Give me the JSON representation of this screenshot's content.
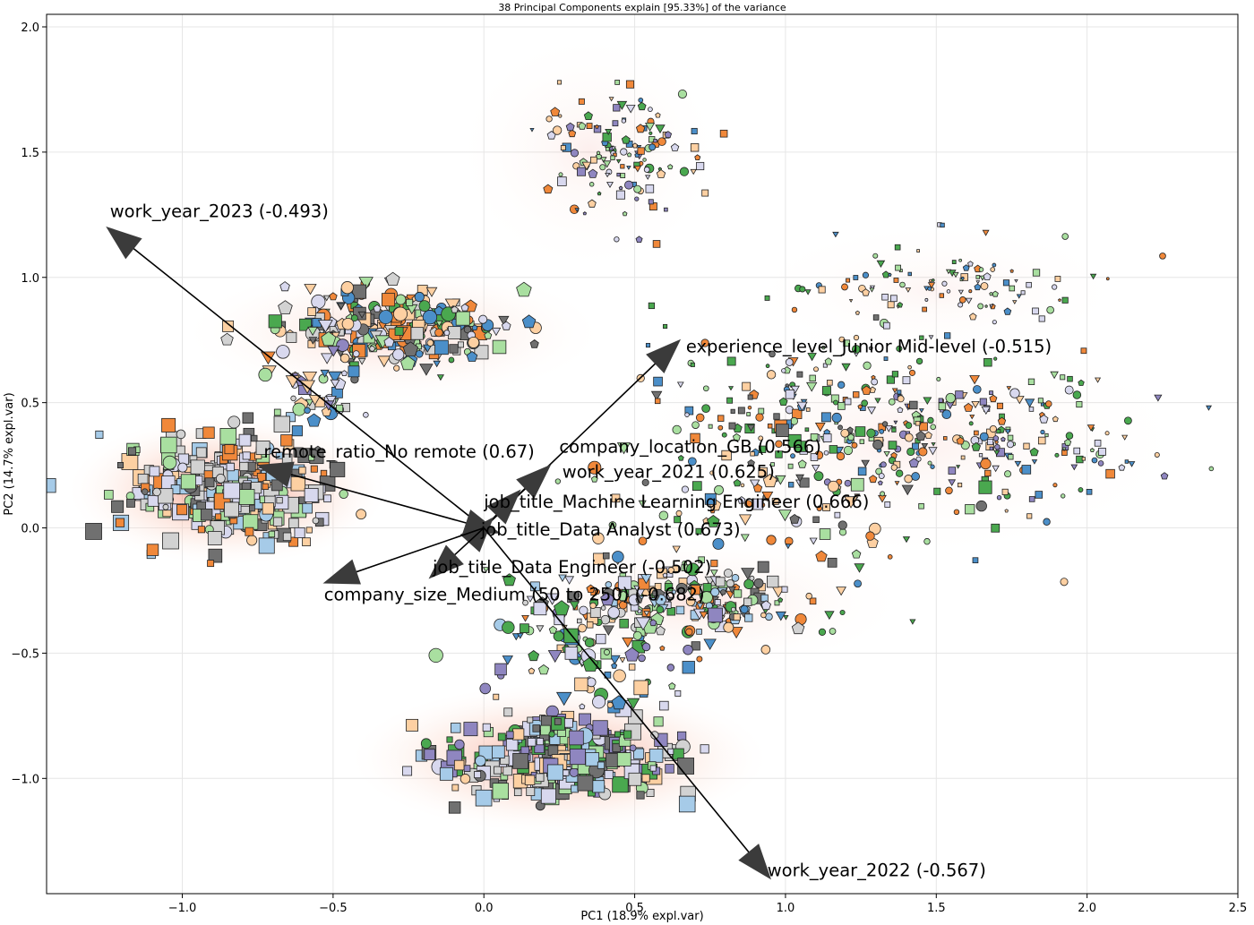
{
  "chart_data": {
    "type": "scatter",
    "title": "38 Principal Components explain [95.33%] of the variance",
    "xlabel": "PC1 (18.9% expl.var)",
    "ylabel": "PC2 (14.7% expl.var)",
    "xlim": [
      -1.45,
      2.5
    ],
    "ylim": [
      -1.46,
      2.05
    ],
    "xticks": [
      -1.0,
      -0.5,
      0.0,
      0.5,
      1.0,
      1.5,
      2.0,
      2.5
    ],
    "xtick_labels": [
      "−1.0",
      "−0.5",
      "0.0",
      "0.5",
      "1.0",
      "1.5",
      "2.0",
      "2.5"
    ],
    "yticks": [
      -1.0,
      -0.5,
      0.0,
      0.5,
      1.0,
      1.5,
      2.0
    ],
    "ytick_labels": [
      "−1.0",
      "−0.5",
      "0.0",
      "0.5",
      "1.0",
      "1.5",
      "2.0"
    ],
    "grid": true,
    "colors": {
      "orange_light": "#fdd0a2",
      "orange": "#f0883a",
      "green_light": "#a9dfa0",
      "green": "#4aa84f",
      "blue_light": "#a6cbe8",
      "blue": "#4b8fc9",
      "purple": "#8f86c0",
      "lavender": "#d8d8ee",
      "gray_light": "#d2d2d2",
      "gray_dark": "#707070",
      "density": "#e8594a",
      "arrow": "#000000",
      "arrowhead": "#3b3b3b"
    },
    "density_regions": [
      {
        "cx": -0.85,
        "cy": 0.15,
        "rx": 0.42,
        "ry": 0.22,
        "peak": 1.0
      },
      {
        "cx": 0.25,
        "cy": -0.92,
        "rx": 0.55,
        "ry": 0.22,
        "peak": 0.85
      },
      {
        "cx": -0.3,
        "cy": 0.78,
        "rx": 0.55,
        "ry": 0.2,
        "peak": 0.35
      },
      {
        "cx": 0.35,
        "cy": 1.5,
        "rx": 0.35,
        "ry": 0.35,
        "peak": 0.12
      },
      {
        "cx": 1.4,
        "cy": 0.35,
        "rx": 0.75,
        "ry": 0.35,
        "peak": 0.12
      },
      {
        "cx": 0.7,
        "cy": -0.3,
        "rx": 0.55,
        "ry": 0.2,
        "peak": 0.2
      },
      {
        "cx": 1.5,
        "cy": 0.95,
        "rx": 0.5,
        "ry": 0.2,
        "peak": 0.08
      }
    ],
    "clusters": [
      {
        "cx": -0.85,
        "cy": 0.15,
        "sx": 0.17,
        "sy": 0.11,
        "n": 320,
        "shape": "square",
        "size": 1.0,
        "palette": [
          "gray_light",
          "gray_light",
          "lavender",
          "orange_light",
          "green_light",
          "gray_dark",
          "orange",
          "blue_light"
        ]
      },
      {
        "cx": 0.25,
        "cy": -0.92,
        "sx": 0.2,
        "sy": 0.09,
        "n": 300,
        "shape": "square",
        "size": 1.0,
        "palette": [
          "orange_light",
          "green_light",
          "gray_light",
          "lavender",
          "gray_dark",
          "green",
          "blue_light",
          "purple"
        ]
      },
      {
        "cx": -0.3,
        "cy": 0.8,
        "sx": 0.2,
        "sy": 0.08,
        "n": 260,
        "shape": "mixed",
        "size": 0.9,
        "palette": [
          "orange_light",
          "green_light",
          "gray_light",
          "lavender",
          "gray_dark",
          "green",
          "orange",
          "blue"
        ]
      },
      {
        "cx": -0.55,
        "cy": 0.55,
        "sx": 0.08,
        "sy": 0.08,
        "n": 40,
        "shape": "mixed",
        "size": 0.9,
        "palette": [
          "orange_light",
          "gray_light",
          "green_light",
          "lavender",
          "blue",
          "purple"
        ]
      },
      {
        "cx": 0.65,
        "cy": -0.3,
        "sx": 0.22,
        "sy": 0.08,
        "n": 230,
        "shape": "mixed",
        "size": 0.75,
        "palette": [
          "orange_light",
          "green_light",
          "gray_light",
          "lavender",
          "gray_dark",
          "orange",
          "blue_light",
          "green"
        ]
      },
      {
        "cx": 0.35,
        "cy": -0.5,
        "sx": 0.18,
        "sy": 0.12,
        "n": 90,
        "shape": "mixed",
        "size": 0.9,
        "palette": [
          "orange_light",
          "green_light",
          "lavender",
          "blue",
          "purple",
          "green"
        ]
      },
      {
        "cx": 0.45,
        "cy": 1.5,
        "sx": 0.14,
        "sy": 0.14,
        "n": 130,
        "shape": "mixed",
        "size": 0.55,
        "palette": [
          "orange_light",
          "green_light",
          "lavender",
          "blue",
          "purple",
          "orange",
          "green"
        ]
      },
      {
        "cx": 1.6,
        "cy": 0.35,
        "sx": 0.3,
        "sy": 0.13,
        "n": 210,
        "shape": "mixed",
        "size": 0.55,
        "palette": [
          "orange_light",
          "green_light",
          "lavender",
          "blue",
          "orange",
          "green",
          "purple"
        ]
      },
      {
        "cx": 1.1,
        "cy": 0.45,
        "sx": 0.3,
        "sy": 0.2,
        "n": 180,
        "shape": "mixed",
        "size": 0.6,
        "palette": [
          "orange_light",
          "green_light",
          "lavender",
          "blue",
          "orange",
          "green",
          "gray_dark"
        ]
      },
      {
        "cx": 1.55,
        "cy": 0.95,
        "sx": 0.25,
        "sy": 0.1,
        "n": 110,
        "shape": "mixed",
        "size": 0.45,
        "palette": [
          "orange_light",
          "green_light",
          "lavender",
          "orange",
          "green",
          "blue"
        ]
      },
      {
        "cx": 0.9,
        "cy": 0.1,
        "sx": 0.35,
        "sy": 0.2,
        "n": 90,
        "shape": "mixed",
        "size": 0.8,
        "palette": [
          "orange_light",
          "green_light",
          "lavender",
          "blue",
          "gray_dark",
          "orange",
          "green"
        ]
      }
    ],
    "loadings": [
      {
        "label": "work_year_2023 (-0.493)",
        "x": -1.25,
        "y": 1.2,
        "tx": -1.24,
        "ty": 1.24,
        "anchor": "start"
      },
      {
        "label": "experience_level_Junior Mid-level (-0.515)",
        "x": 0.65,
        "y": 0.75,
        "tx": 0.67,
        "ty": 0.7,
        "anchor": "start"
      },
      {
        "label": "remote_ratio_No remote (0.67)",
        "x": -0.75,
        "y": 0.25,
        "tx": -0.73,
        "ty": 0.28,
        "anchor": "start"
      },
      {
        "label": "company_location_GB (0.566)",
        "x": 0.22,
        "y": 0.25,
        "tx": 0.25,
        "ty": 0.3,
        "anchor": "start"
      },
      {
        "label": "work_year_2021 (0.625)",
        "x": 0.12,
        "y": 0.15,
        "tx": 0.26,
        "ty": 0.2,
        "anchor": "start"
      },
      {
        "label": "job_title_Machine Learning Engineer (0.666)",
        "x": 0.03,
        "y": 0.04,
        "tx": 0.0,
        "ty": 0.08,
        "anchor": "start"
      },
      {
        "label": "job_title_Data Analyst (0.673)",
        "x": 0.05,
        "y": -0.02,
        "tx": -0.01,
        "ty": -0.03,
        "anchor": "start"
      },
      {
        "label": "job_title_Data Engineer (-0.502)",
        "x": -0.18,
        "y": -0.2,
        "tx": -0.17,
        "ty": -0.18,
        "anchor": "start"
      },
      {
        "label": "company_size_Medium (50 to 250) (-0.682)",
        "x": -0.53,
        "y": -0.22,
        "tx": -0.53,
        "ty": -0.29,
        "anchor": "start"
      },
      {
        "label": "work_year_2022 (-0.567)",
        "x": 0.95,
        "y": -1.4,
        "tx": 0.94,
        "ty": -1.39,
        "anchor": "start"
      }
    ]
  }
}
